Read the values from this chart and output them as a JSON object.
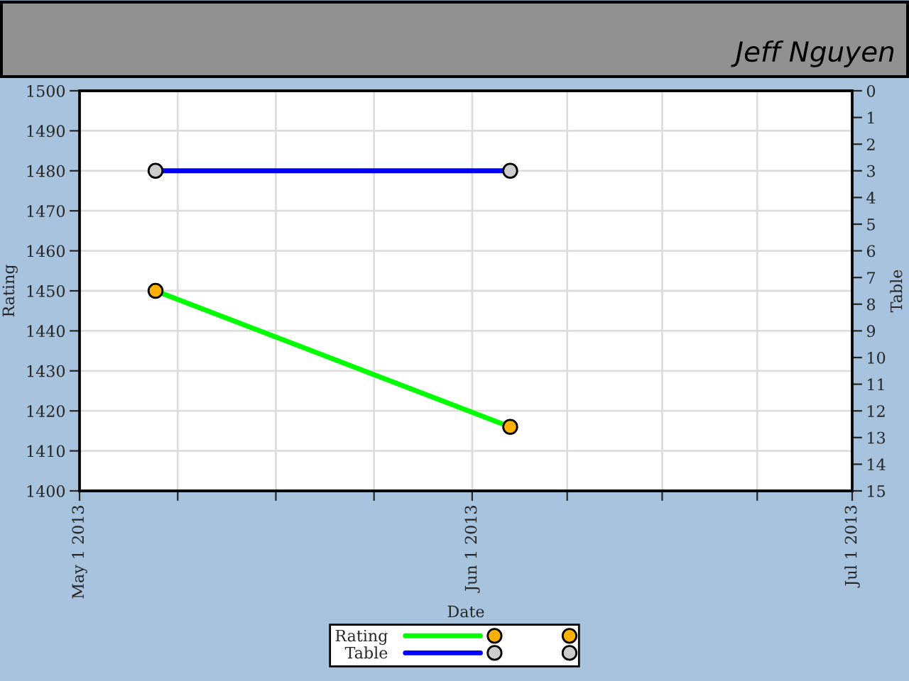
{
  "chart_data": {
    "type": "line",
    "title": "Jeff Nguyen",
    "xlabel": "Date",
    "ylabel": "Rating",
    "y2label": "Table",
    "x": [
      "2013-05-07",
      "2013-06-04"
    ],
    "xlim": [
      "2013-05-01",
      "2013-07-01"
    ],
    "xticks": [
      {
        "value": "2013-05-01",
        "label": "May 1 2013"
      },
      {
        "value": "2013-05-08T18:00",
        "label": null
      },
      {
        "value": "2013-05-16T12:00",
        "label": null
      },
      {
        "value": "2013-05-24T06:00",
        "label": null
      },
      {
        "value": "2013-06-01",
        "label": "Jun 1 2013"
      },
      {
        "value": "2013-06-08T12:00",
        "label": null
      },
      {
        "value": "2013-06-16",
        "label": null
      },
      {
        "value": "2013-06-23T12:00",
        "label": null
      },
      {
        "value": "2013-07-01",
        "label": "Jul 1 2013"
      }
    ],
    "ylim": [
      1400,
      1500
    ],
    "yticks": [
      1400,
      1410,
      1420,
      1430,
      1440,
      1450,
      1460,
      1470,
      1480,
      1490,
      1500
    ],
    "y2lim": [
      15,
      0
    ],
    "y2ticks": [
      0,
      1,
      2,
      3,
      4,
      5,
      6,
      7,
      8,
      9,
      10,
      11,
      12,
      13,
      14,
      15
    ],
    "series": [
      {
        "name": "Rating",
        "color": "#00ff00",
        "colors": [
          "#ffb000",
          "#ffb000"
        ],
        "values": [
          1450,
          1416
        ]
      },
      {
        "name": "Table",
        "color": "#0000ff",
        "colors": [
          "#cccccc",
          "#cccccc"
        ],
        "values": [
          3,
          3
        ],
        "axis": "y2"
      }
    ],
    "grid": true,
    "legend": "bottom",
    "marker": "circle",
    "line_style": "solid"
  }
}
